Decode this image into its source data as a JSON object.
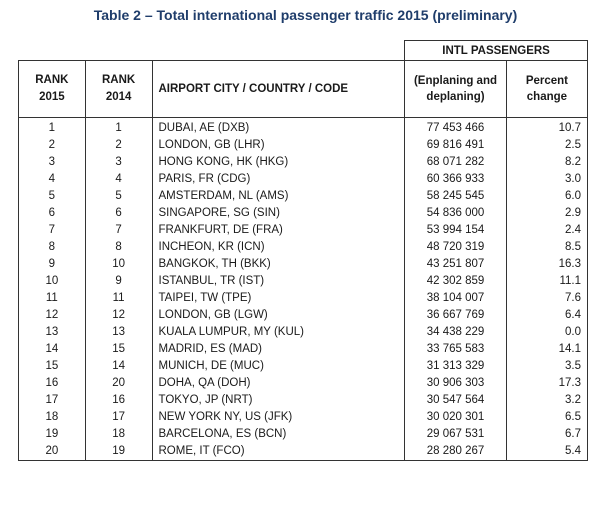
{
  "title": "Table 2 – Total international passenger traffic 2015 (preliminary)",
  "headers": {
    "rank2015": "RANK 2015",
    "rank2014": "RANK 2014",
    "airport": "AIRPORT CITY / COUNTRY / CODE",
    "group": "INTL PASSENGERS",
    "passengers": "(Enplaning and deplaning)",
    "percent": "Percent change"
  },
  "rows": [
    {
      "r2015": "1",
      "r2014": "1",
      "airport": "DUBAI, AE (DXB)",
      "passengers": "77 453 466",
      "pct": "10.7"
    },
    {
      "r2015": "2",
      "r2014": "2",
      "airport": "LONDON, GB (LHR)",
      "passengers": "69 816 491",
      "pct": "2.5"
    },
    {
      "r2015": "3",
      "r2014": "3",
      "airport": "HONG KONG, HK (HKG)",
      "passengers": "68 071 282",
      "pct": "8.2"
    },
    {
      "r2015": "4",
      "r2014": "4",
      "airport": "PARIS, FR (CDG)",
      "passengers": "60 366 933",
      "pct": "3.0"
    },
    {
      "r2015": "5",
      "r2014": "5",
      "airport": "AMSTERDAM, NL (AMS)",
      "passengers": "58 245 545",
      "pct": "6.0"
    },
    {
      "r2015": "6",
      "r2014": "6",
      "airport": "SINGAPORE, SG (SIN)",
      "passengers": "54 836 000",
      "pct": "2.9"
    },
    {
      "r2015": "7",
      "r2014": "7",
      "airport": "FRANKFURT, DE (FRA)",
      "passengers": "53 994 154",
      "pct": "2.4"
    },
    {
      "r2015": "8",
      "r2014": "8",
      "airport": "INCHEON, KR (ICN)",
      "passengers": "48 720 319",
      "pct": "8.5"
    },
    {
      "r2015": "9",
      "r2014": "10",
      "airport": "BANGKOK, TH (BKK)",
      "passengers": "43 251 807",
      "pct": "16.3"
    },
    {
      "r2015": "10",
      "r2014": "9",
      "airport": "ISTANBUL, TR (IST)",
      "passengers": "42 302 859",
      "pct": "11.1"
    },
    {
      "r2015": "11",
      "r2014": "11",
      "airport": "TAIPEI, TW (TPE)",
      "passengers": "38 104 007",
      "pct": "7.6"
    },
    {
      "r2015": "12",
      "r2014": "12",
      "airport": "LONDON, GB (LGW)",
      "passengers": "36 667 769",
      "pct": "6.4"
    },
    {
      "r2015": "13",
      "r2014": "13",
      "airport": "KUALA LUMPUR, MY (KUL)",
      "passengers": "34 438 229",
      "pct": "0.0"
    },
    {
      "r2015": "14",
      "r2014": "15",
      "airport": "MADRID, ES (MAD)",
      "passengers": "33 765 583",
      "pct": "14.1"
    },
    {
      "r2015": "15",
      "r2014": "14",
      "airport": "MUNICH, DE (MUC)",
      "passengers": "31 313 329",
      "pct": "3.5"
    },
    {
      "r2015": "16",
      "r2014": "20",
      "airport": "DOHA, QA (DOH)",
      "passengers": "30 906 303",
      "pct": "17.3"
    },
    {
      "r2015": "17",
      "r2014": "16",
      "airport": "TOKYO, JP (NRT)",
      "passengers": "30 547 564",
      "pct": "3.2"
    },
    {
      "r2015": "18",
      "r2014": "17",
      "airport": "NEW YORK NY, US (JFK)",
      "passengers": "30 020 301",
      "pct": "6.5"
    },
    {
      "r2015": "19",
      "r2014": "18",
      "airport": "BARCELONA, ES (BCN)",
      "passengers": "29 067 531",
      "pct": "6.7"
    },
    {
      "r2015": "20",
      "r2014": "19",
      "airport": "ROME, IT (FCO)",
      "passengers": "28 280 267",
      "pct": "5.4"
    }
  ]
}
